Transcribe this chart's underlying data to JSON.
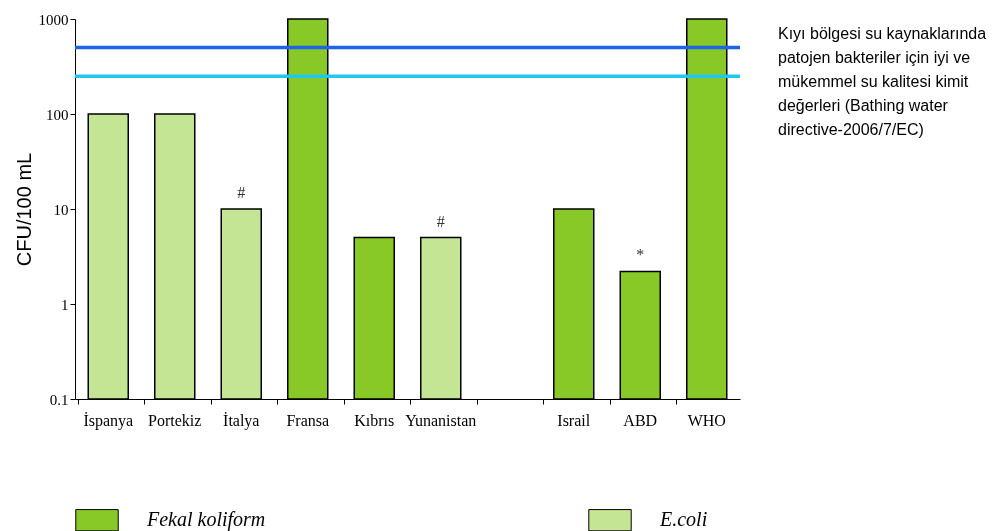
{
  "chart_data": {
    "type": "bar",
    "ylabel": "CFU/100 mL",
    "categories": [
      "İspanya",
      "Portekiz",
      "İtalya",
      "Fransa",
      "Kıbrıs",
      "Yunanistan",
      null,
      "Israil",
      "ABD",
      "WHO"
    ],
    "series": [
      {
        "name": "Fekal koliform",
        "color": "#88c928",
        "values": [
          null,
          null,
          null,
          1000,
          5,
          null,
          null,
          10,
          2.2,
          1000
        ]
      },
      {
        "name": "E.coli",
        "color": "#c4e594",
        "values": [
          100,
          100,
          10,
          null,
          null,
          5,
          null,
          null,
          null,
          null
        ]
      }
    ],
    "log": true,
    "ylim": [
      0.1,
      1000
    ],
    "yticks": [
      {
        "value": 0.1,
        "label": "0.1"
      },
      1,
      10,
      100,
      1000
    ],
    "grid": false,
    "legend": "bottom",
    "ref_lines": [
      {
        "axis": "y",
        "value": 500,
        "color": "#1f63e6"
      },
      {
        "axis": "y",
        "value": 250,
        "color": "#1ec8f0"
      }
    ],
    "annotations": [
      {
        "text": "#",
        "x": "İtalya",
        "y": 10
      },
      {
        "text": "#",
        "x": "Yunanistan",
        "y": 5
      },
      {
        "text": "*",
        "x": "ABD",
        "y": 2.2
      },
      "Kıyı bölgesi su kaynaklarında patojen bakteriler için iyi ve mükemmel su kalitesi kimit değerleri (Bathing water directive-2006/7/EC)"
    ]
  }
}
